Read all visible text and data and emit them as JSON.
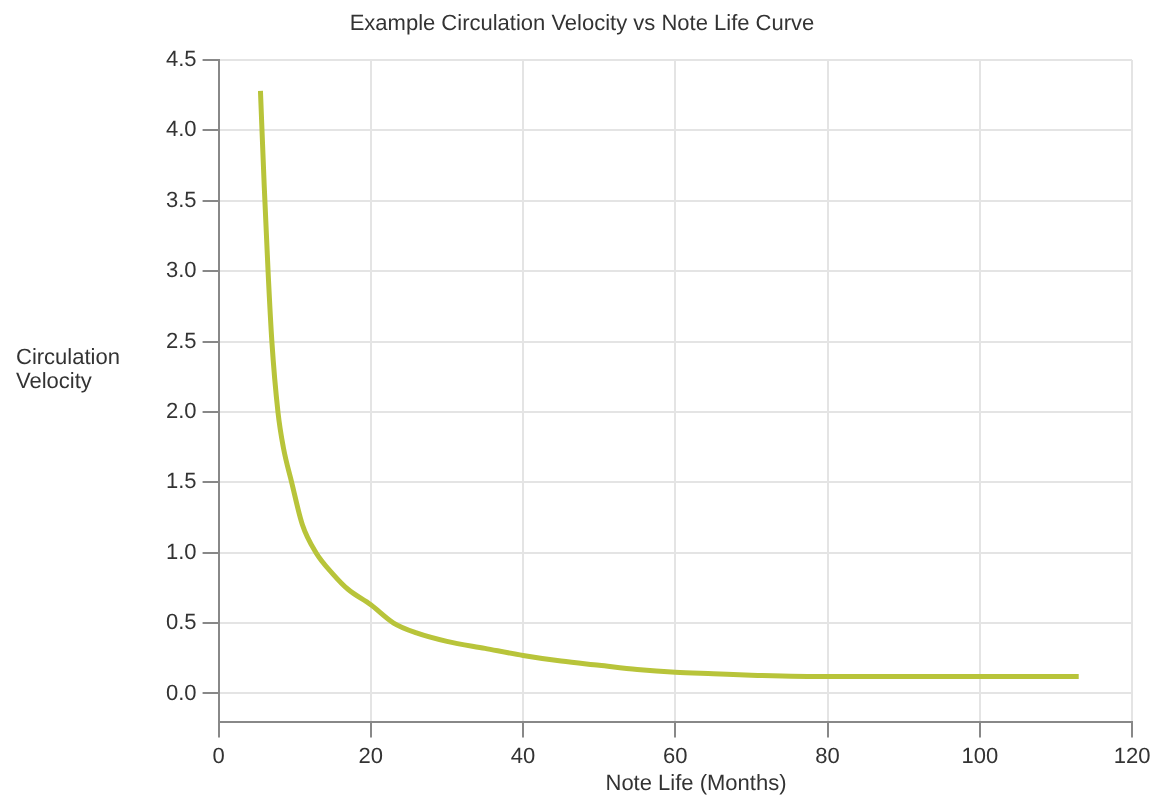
{
  "chart_data": {
    "type": "line",
    "title": "Example Circulation Velocity vs Note Life Curve",
    "xlabel": "Note Life (Months)",
    "ylabel": "Circulation Velocity",
    "series": [
      {
        "color": "#b8c43a",
        "x": [
          5.5,
          6,
          6.5,
          7,
          7.8,
          8.5,
          9.6,
          11,
          12.8,
          15,
          17,
          20,
          23,
          26,
          30,
          35,
          40,
          45,
          50,
          55,
          60,
          65,
          70,
          80,
          90,
          100,
          113
        ],
        "values": [
          4.28,
          3.6,
          3.0,
          2.5,
          2.0,
          1.75,
          1.5,
          1.2,
          1.0,
          0.85,
          0.74,
          0.63,
          0.5,
          0.43,
          0.37,
          0.32,
          0.27,
          0.23,
          0.2,
          0.17,
          0.15,
          0.14,
          0.13,
          0.12,
          0.12,
          0.12,
          0.12
        ]
      }
    ],
    "xlim": [
      0,
      120
    ],
    "xticks": [
      0,
      20,
      40,
      60,
      80,
      100,
      120
    ],
    "ylim": [
      -0.2,
      4.5
    ],
    "yticks": [
      {
        "value": 0,
        "label": "0.0"
      },
      0.5,
      {
        "value": 1,
        "label": "1.0"
      },
      1.5,
      {
        "value": 2,
        "label": "2.0"
      },
      2.5,
      {
        "value": 3,
        "label": "3.0"
      },
      3.5,
      {
        "value": 4,
        "label": "4.0"
      },
      4.5
    ],
    "grid": true,
    "legend": false,
    "marker": "none",
    "line_style": "solid"
  }
}
